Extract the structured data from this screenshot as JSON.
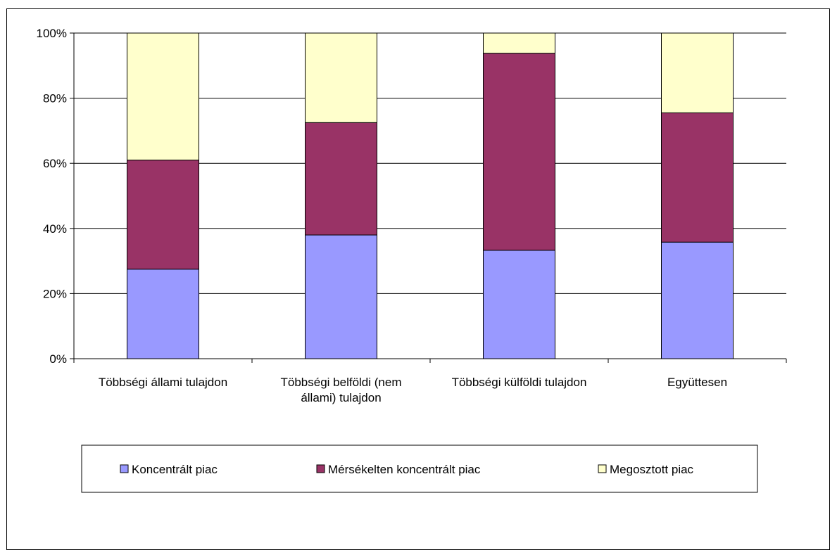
{
  "chart_data": {
    "type": "bar",
    "stacked": true,
    "percent": true,
    "categories": [
      [
        "Többségi állami tulajdon"
      ],
      [
        "Többségi belföldi (nem",
        "állami) tulajdon"
      ],
      [
        "Többségi külföldi tulajdon"
      ],
      [
        "Együttesen"
      ]
    ],
    "series": [
      {
        "name": "Koncentrált piac",
        "color": "#9999FF",
        "values": [
          27.5,
          38.0,
          33.3,
          35.8
        ]
      },
      {
        "name": "Mérsékelten koncentrált piac",
        "color": "#993366",
        "values": [
          33.5,
          34.5,
          60.5,
          39.7
        ]
      },
      {
        "name": "Megosztott piac",
        "color": "#FFFFCC",
        "values": [
          39.0,
          27.5,
          6.2,
          24.5
        ]
      }
    ],
    "ylim": [
      0,
      100
    ],
    "yticks": [
      "0%",
      "20%",
      "40%",
      "60%",
      "80%",
      "100%"
    ],
    "grid": true,
    "legend_position": "bottom"
  }
}
